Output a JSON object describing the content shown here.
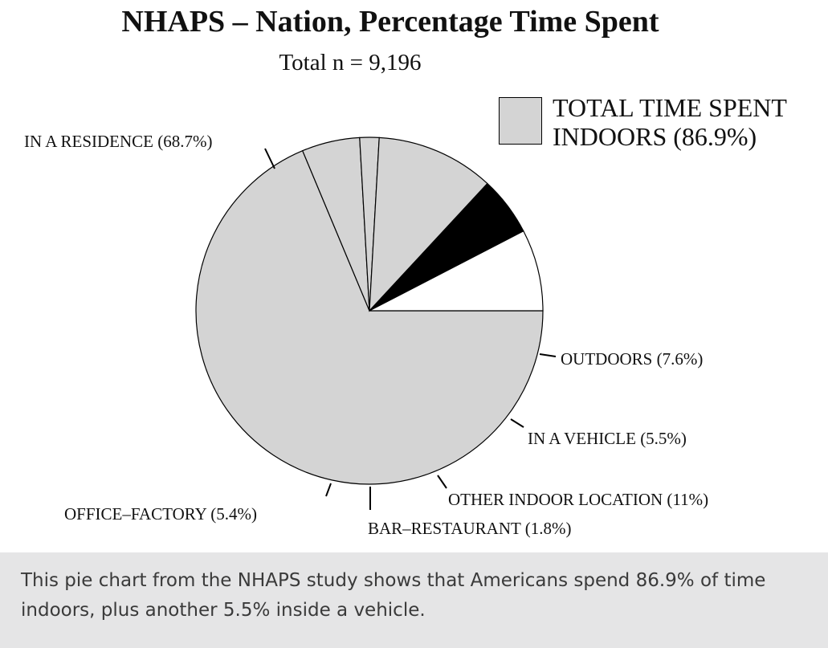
{
  "chart_data": {
    "type": "pie",
    "title": "NHAPS – Nation, Percentage Time Spent",
    "subtitle": "Total n = 9,196",
    "legend": {
      "label": "TOTAL TIME SPENT\nINDOORS (86.9%)",
      "placement": "top-right",
      "color": "#d4d4d4"
    },
    "start_angle_deg": 0,
    "direction": "clockwise",
    "slices": [
      {
        "name": "IN A RESIDENCE",
        "label": "IN A RESIDENCE (68.7%)",
        "value": 68.7,
        "color": "#d4d4d4"
      },
      {
        "name": "OFFICE–FACTORY",
        "label": "OFFICE–FACTORY (5.4%)",
        "value": 5.4,
        "color": "#d4d4d4"
      },
      {
        "name": "BAR–RESTAURANT",
        "label": "BAR–RESTAURANT (1.8%)",
        "value": 1.8,
        "color": "#d4d4d4"
      },
      {
        "name": "OTHER INDOOR LOCATION",
        "label": "OTHER INDOOR LOCATION (11%)",
        "value": 11,
        "color": "#d4d4d4"
      },
      {
        "name": "IN A VEHICLE",
        "label": "IN A VEHICLE (5.5%)",
        "value": 5.5,
        "color": "#000000"
      },
      {
        "name": "OUTDOORS",
        "label": "OUTDOORS (7.6%)",
        "value": 7.6,
        "color": "#ffffff"
      }
    ]
  },
  "caption": "This pie chart from the NHAPS study shows that Americans spend 86.9% of time indoors, plus another 5.5% inside a vehicle."
}
